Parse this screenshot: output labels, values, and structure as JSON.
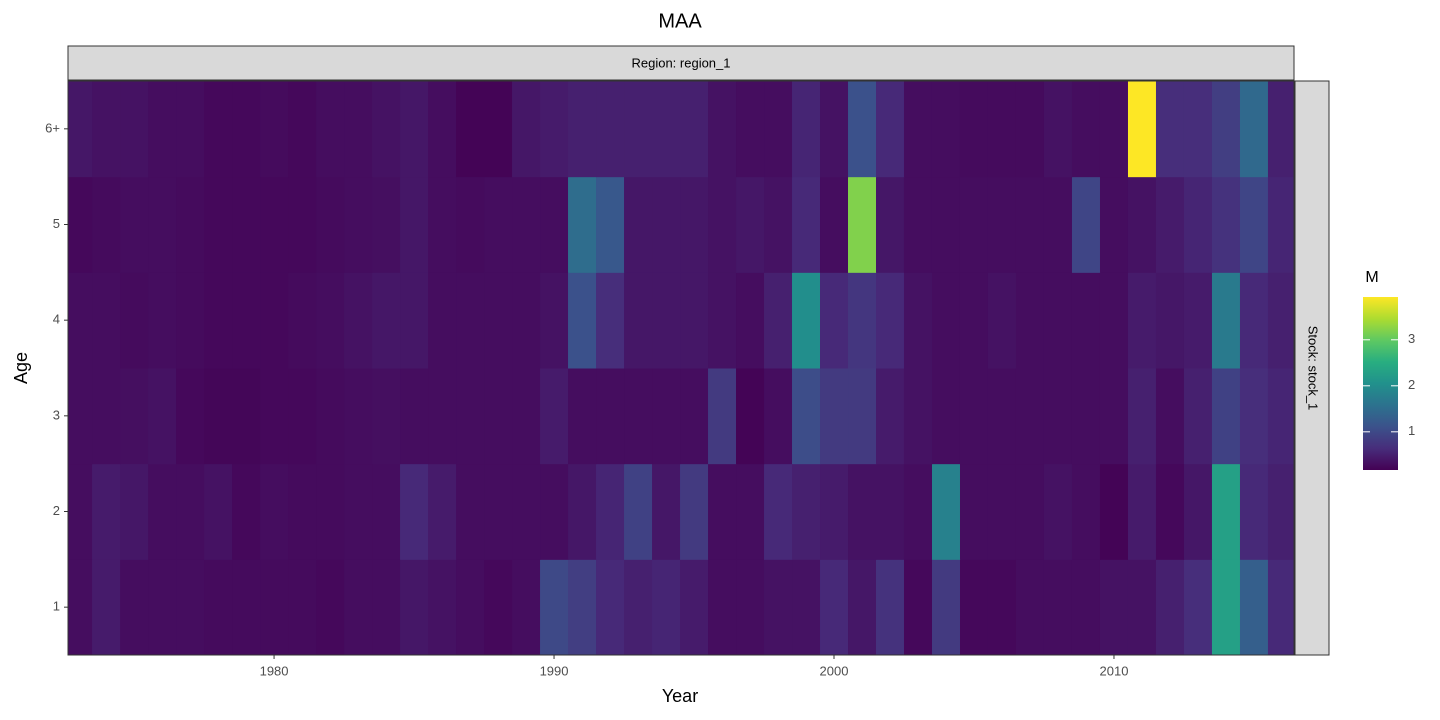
{
  "chart_data": {
    "type": "heatmap",
    "title": "MAA",
    "x_label": "Year",
    "y_label": "Age",
    "facet_column_label": "Region: region_1",
    "facet_row_label": "Stock: stock_1",
    "legend_title": "M",
    "colorscale": "viridis",
    "x": [
      1973,
      1974,
      1975,
      1976,
      1977,
      1978,
      1979,
      1980,
      1981,
      1982,
      1983,
      1984,
      1985,
      1986,
      1987,
      1988,
      1989,
      1990,
      1991,
      1992,
      1993,
      1994,
      1995,
      1996,
      1997,
      1998,
      1999,
      2000,
      2001,
      2002,
      2003,
      2004,
      2005,
      2006,
      2007,
      2008,
      2009,
      2010,
      2011,
      2012,
      2013,
      2014,
      2015,
      2016
    ],
    "categories": [
      "1",
      "2",
      "3",
      "4",
      "5",
      "6+"
    ],
    "z": [
      [
        0.3,
        0.45,
        0.3,
        0.3,
        0.3,
        0.28,
        0.28,
        0.28,
        0.28,
        0.25,
        0.3,
        0.3,
        0.4,
        0.35,
        0.3,
        0.25,
        0.3,
        1.0,
        0.85,
        0.6,
        0.5,
        0.55,
        0.45,
        0.3,
        0.3,
        0.35,
        0.35,
        0.6,
        0.4,
        0.7,
        0.25,
        0.8,
        0.25,
        0.25,
        0.3,
        0.3,
        0.3,
        0.35,
        0.35,
        0.5,
        0.65,
        2.3,
        1.3,
        0.6
      ],
      [
        0.3,
        0.45,
        0.4,
        0.3,
        0.3,
        0.35,
        0.25,
        0.3,
        0.28,
        0.28,
        0.3,
        0.3,
        0.6,
        0.45,
        0.3,
        0.3,
        0.3,
        0.3,
        0.4,
        0.55,
        0.9,
        0.4,
        0.8,
        0.3,
        0.3,
        0.6,
        0.5,
        0.45,
        0.35,
        0.35,
        0.3,
        1.8,
        0.3,
        0.3,
        0.3,
        0.35,
        0.3,
        0.2,
        0.45,
        0.25,
        0.4,
        2.3,
        0.6,
        0.5
      ],
      [
        0.3,
        0.3,
        0.32,
        0.35,
        0.25,
        0.22,
        0.22,
        0.25,
        0.25,
        0.28,
        0.3,
        0.32,
        0.3,
        0.3,
        0.3,
        0.3,
        0.3,
        0.45,
        0.3,
        0.3,
        0.3,
        0.3,
        0.3,
        0.8,
        0.2,
        0.3,
        1.05,
        0.8,
        0.8,
        0.45,
        0.35,
        0.3,
        0.3,
        0.3,
        0.3,
        0.3,
        0.3,
        0.3,
        0.5,
        0.3,
        0.5,
        0.9,
        0.65,
        0.55
      ],
      [
        0.3,
        0.3,
        0.28,
        0.3,
        0.28,
        0.25,
        0.25,
        0.25,
        0.28,
        0.3,
        0.35,
        0.4,
        0.4,
        0.3,
        0.3,
        0.3,
        0.3,
        0.35,
        1.1,
        0.65,
        0.4,
        0.4,
        0.4,
        0.35,
        0.3,
        0.5,
        2.0,
        0.6,
        0.75,
        0.6,
        0.35,
        0.3,
        0.3,
        0.35,
        0.3,
        0.3,
        0.3,
        0.3,
        0.45,
        0.4,
        0.45,
        1.7,
        0.6,
        0.5
      ],
      [
        0.25,
        0.28,
        0.3,
        0.3,
        0.28,
        0.25,
        0.25,
        0.25,
        0.25,
        0.28,
        0.3,
        0.32,
        0.4,
        0.3,
        0.28,
        0.3,
        0.3,
        0.3,
        1.5,
        1.2,
        0.4,
        0.4,
        0.4,
        0.35,
        0.4,
        0.35,
        0.6,
        0.3,
        3.2,
        0.4,
        0.3,
        0.3,
        0.3,
        0.3,
        0.3,
        0.3,
        0.95,
        0.3,
        0.35,
        0.45,
        0.55,
        0.7,
        0.95,
        0.55
      ],
      [
        0.4,
        0.35,
        0.35,
        0.3,
        0.3,
        0.25,
        0.25,
        0.28,
        0.25,
        0.3,
        0.3,
        0.35,
        0.4,
        0.3,
        0.2,
        0.2,
        0.4,
        0.45,
        0.5,
        0.5,
        0.5,
        0.5,
        0.5,
        0.35,
        0.3,
        0.3,
        0.55,
        0.35,
        1.1,
        0.6,
        0.3,
        0.3,
        0.28,
        0.28,
        0.28,
        0.35,
        0.3,
        0.3,
        3.93,
        0.65,
        0.65,
        0.85,
        1.45,
        0.5
      ]
    ],
    "xlim": [
      1972.64,
      2016.43
    ],
    "xticks": [
      1980,
      1990,
      2000,
      2010
    ],
    "clim": [
      0.17,
      3.93
    ],
    "colorbar_ticks": [
      1,
      2,
      3
    ]
  }
}
